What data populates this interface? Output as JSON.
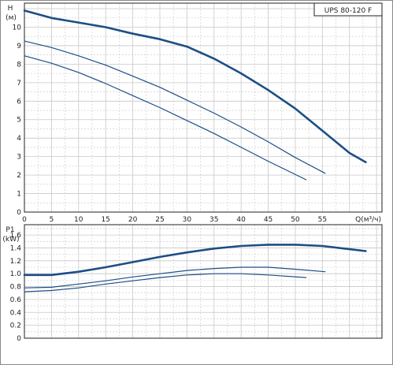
{
  "chart_data": [
    {
      "type": "line",
      "title": "UPS 80-120 F",
      "ylabel_top": "H",
      "ylabel_unit": "(м)",
      "xlabel": "Q(м³/ч)",
      "xlim": [
        0,
        66
      ],
      "ylim": [
        0,
        11.3
      ],
      "xticks": [
        0,
        5,
        10,
        15,
        20,
        25,
        30,
        35,
        40,
        45,
        50,
        55
      ],
      "yticks": [
        0,
        1,
        2,
        3,
        4,
        5,
        6,
        7,
        8,
        9,
        10
      ],
      "grid": true,
      "series": [
        {
          "x": [
            0,
            5,
            10,
            15,
            20,
            25,
            30,
            35,
            40,
            45,
            50,
            55,
            60,
            63
          ],
          "y": [
            10.9,
            10.5,
            10.25,
            10.0,
            9.65,
            9.35,
            8.95,
            8.3,
            7.5,
            6.6,
            5.6,
            4.4,
            3.2,
            2.7
          ]
        },
        {
          "x": [
            0,
            5,
            10,
            15,
            20,
            25,
            30,
            35,
            40,
            45,
            50,
            55.5
          ],
          "y": [
            9.25,
            8.9,
            8.45,
            7.95,
            7.35,
            6.75,
            6.05,
            5.35,
            4.6,
            3.8,
            2.95,
            2.1
          ]
        },
        {
          "x": [
            0,
            5,
            10,
            15,
            20,
            25,
            30,
            35,
            40,
            45,
            52
          ],
          "y": [
            8.45,
            8.05,
            7.55,
            6.95,
            6.3,
            5.65,
            4.95,
            4.25,
            3.5,
            2.75,
            1.75
          ]
        }
      ]
    },
    {
      "type": "line",
      "ylabel_top": "P1",
      "ylabel_unit": "(kW)",
      "xlim": [
        0,
        66
      ],
      "ylim": [
        0,
        1.76
      ],
      "yticks": [
        0,
        0.2,
        0.4,
        0.6,
        0.8,
        1.0,
        1.2,
        1.4,
        1.6
      ],
      "ytick_labels": [
        "0",
        "0.2",
        "0.4",
        "0.6",
        "0.8",
        "1.0",
        "1.2",
        "1.4",
        "1.6"
      ],
      "grid": true,
      "series": [
        {
          "x": [
            0,
            5,
            10,
            15,
            20,
            25,
            30,
            35,
            40,
            45,
            50,
            55,
            60,
            63
          ],
          "y": [
            0.98,
            0.98,
            1.03,
            1.1,
            1.18,
            1.26,
            1.33,
            1.39,
            1.43,
            1.45,
            1.45,
            1.43,
            1.38,
            1.35
          ]
        },
        {
          "x": [
            0,
            5,
            10,
            15,
            20,
            25,
            30,
            35,
            40,
            45,
            50,
            55.5
          ],
          "y": [
            0.78,
            0.79,
            0.84,
            0.89,
            0.95,
            1.0,
            1.05,
            1.08,
            1.1,
            1.1,
            1.07,
            1.03
          ]
        },
        {
          "x": [
            0,
            5,
            10,
            15,
            20,
            25,
            30,
            35,
            40,
            45,
            52
          ],
          "y": [
            0.72,
            0.74,
            0.78,
            0.84,
            0.89,
            0.94,
            0.98,
            1.0,
            1.0,
            0.98,
            0.94
          ]
        }
      ]
    }
  ],
  "colors": {
    "curve": "#1d4e85",
    "grid": "#c8c8c8",
    "frame": "#222222"
  }
}
